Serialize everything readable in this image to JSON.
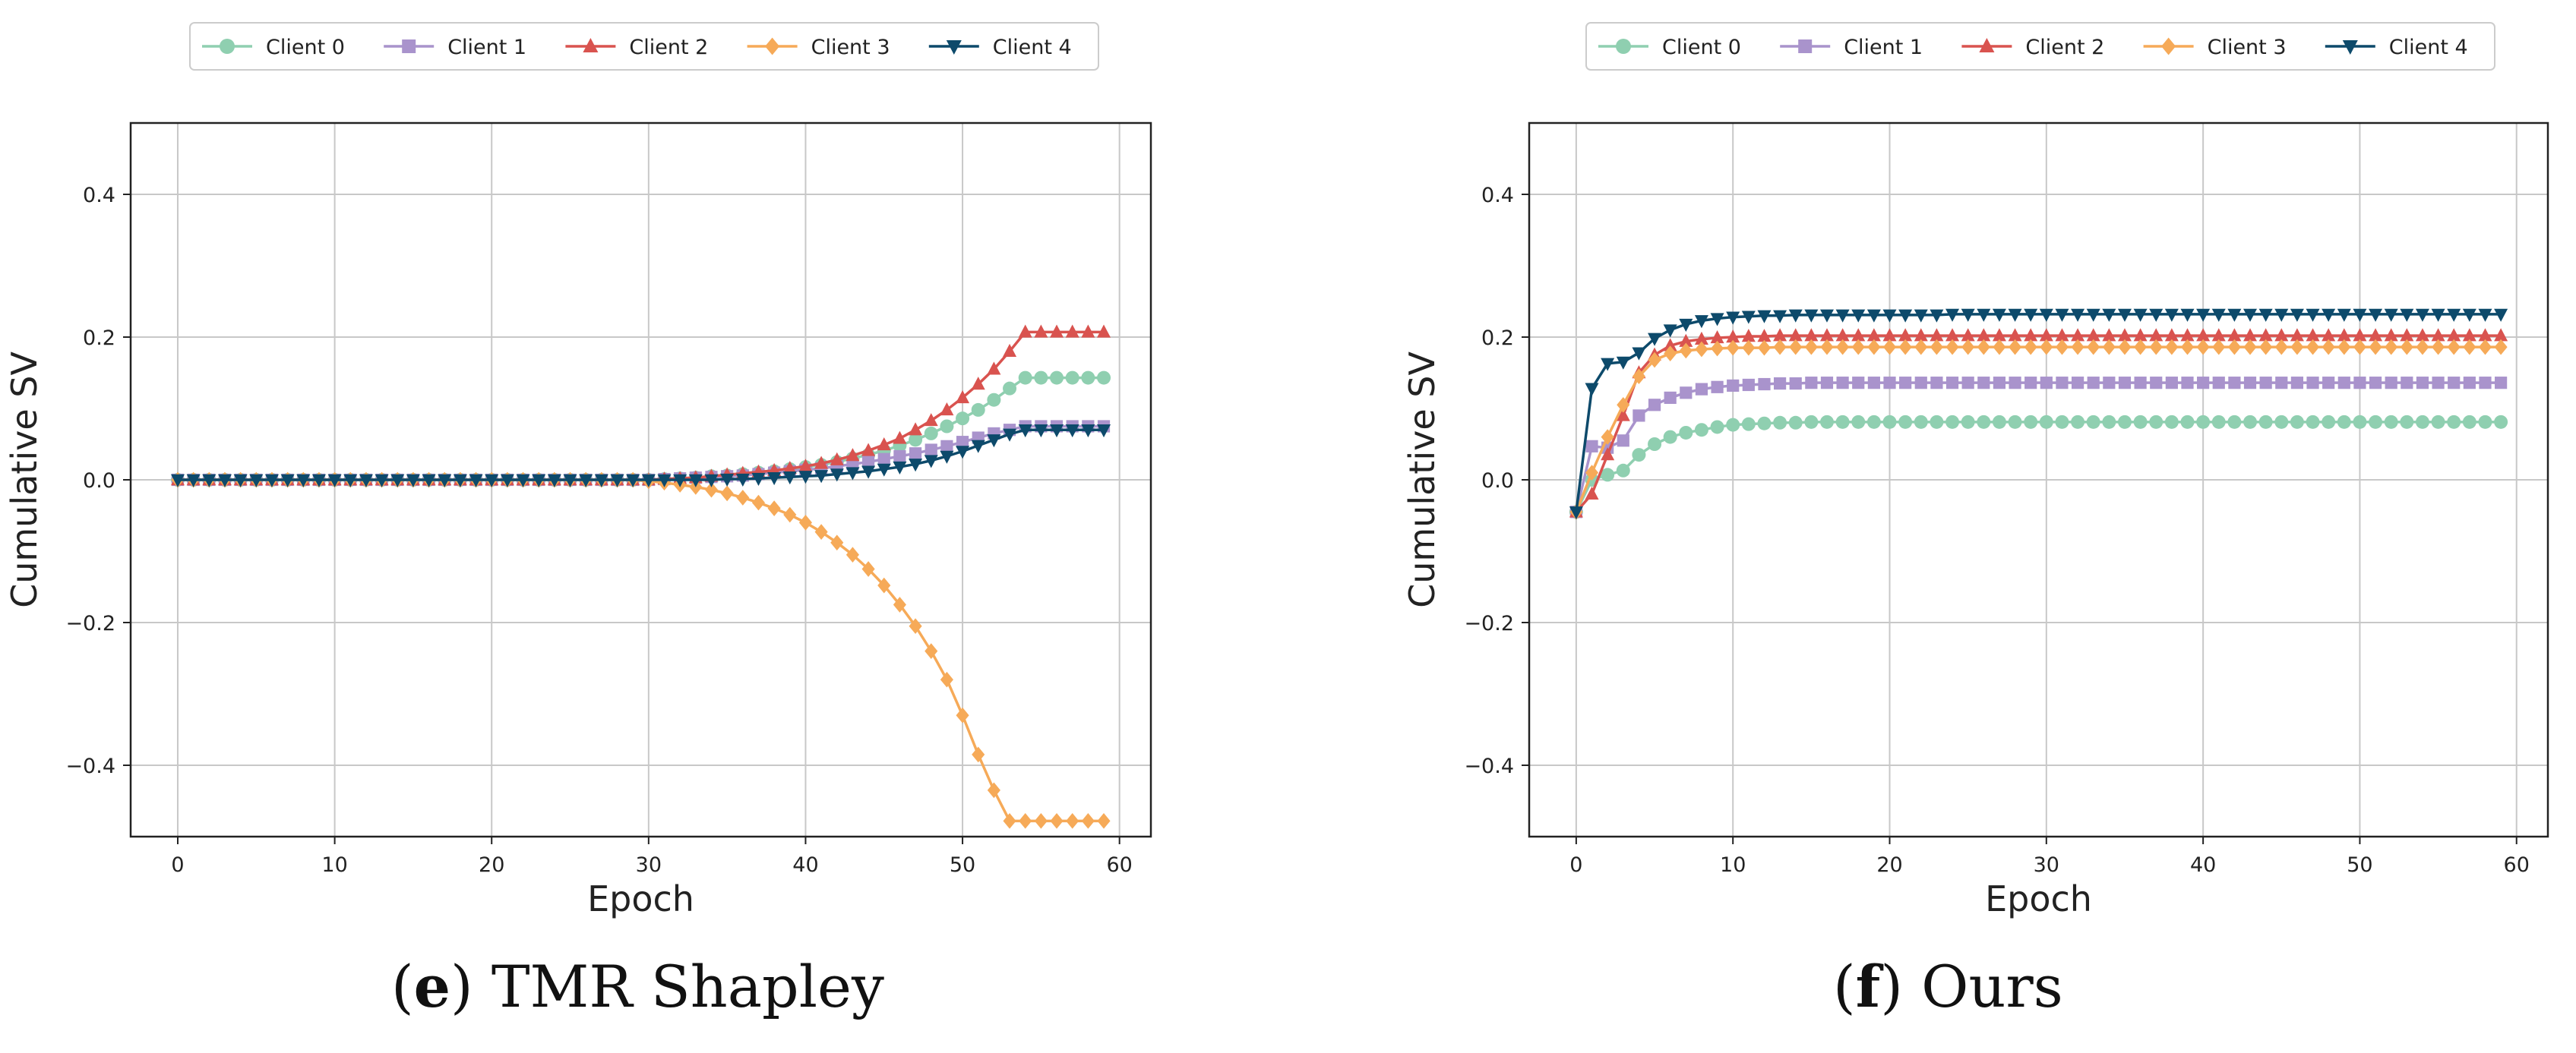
{
  "colors": {
    "client0": "#8fcfb0",
    "client1": "#a993cc",
    "client2": "#d9534f",
    "client3": "#f6aa58",
    "client4": "#0d4a6b",
    "grid": "#c8c8c8",
    "axis": "#222222"
  },
  "chart_data": [
    {
      "type": "line",
      "panel_letter": "e",
      "caption": "TMR Shapley",
      "xlabel": "Epoch",
      "ylabel": "Cumulative SV",
      "xlim": [
        -3,
        62
      ],
      "ylim": [
        -0.5,
        0.5
      ],
      "xticks": [
        0,
        10,
        20,
        30,
        40,
        50,
        60
      ],
      "xtick_labels": [
        "0",
        "10",
        "20",
        "30",
        "40",
        "50",
        "60"
      ],
      "yticks": [
        -0.4,
        -0.2,
        0.0,
        0.2,
        0.4
      ],
      "ytick_labels": [
        "−0.4",
        "−0.2",
        "0.0",
        "0.2",
        "0.4"
      ],
      "grid": true,
      "legend_location": "top-center",
      "x": [
        0,
        1,
        2,
        3,
        4,
        5,
        6,
        7,
        8,
        9,
        10,
        11,
        12,
        13,
        14,
        15,
        16,
        17,
        18,
        19,
        20,
        21,
        22,
        23,
        24,
        25,
        26,
        27,
        28,
        29,
        30,
        31,
        32,
        33,
        34,
        35,
        36,
        37,
        38,
        39,
        40,
        41,
        42,
        43,
        44,
        45,
        46,
        47,
        48,
        49,
        50,
        51,
        52,
        53,
        54,
        55,
        56,
        57,
        58,
        59
      ],
      "series": [
        {
          "name": "Client 0",
          "marker": "circle",
          "values": [
            0,
            0,
            0,
            0,
            0,
            0,
            0,
            0,
            0,
            0,
            0,
            0,
            0,
            0,
            0,
            0,
            0,
            0,
            0,
            0,
            0,
            0,
            0,
            0,
            0,
            0,
            0,
            0,
            0,
            0,
            0,
            0.001,
            0.002,
            0.003,
            0.005,
            0.006,
            0.008,
            0.01,
            0.012,
            0.015,
            0.018,
            0.021,
            0.025,
            0.03,
            0.035,
            0.041,
            0.048,
            0.056,
            0.065,
            0.075,
            0.086,
            0.098,
            0.112,
            0.128,
            0.143,
            0.143,
            0.143,
            0.143,
            0.143,
            0.143
          ]
        },
        {
          "name": "Client 1",
          "marker": "square",
          "values": [
            0,
            0,
            0,
            0,
            0,
            0,
            0,
            0,
            0,
            0,
            0,
            0,
            0,
            0,
            0,
            0,
            0,
            0,
            0,
            0,
            0,
            0,
            0,
            0,
            0,
            0,
            0,
            0,
            0,
            0,
            0,
            0.001,
            0.002,
            0.003,
            0.004,
            0.005,
            0.006,
            0.008,
            0.01,
            0.012,
            0.014,
            0.016,
            0.019,
            0.022,
            0.025,
            0.029,
            0.033,
            0.037,
            0.042,
            0.047,
            0.053,
            0.059,
            0.065,
            0.07,
            0.075,
            0.075,
            0.075,
            0.075,
            0.075,
            0.075
          ]
        },
        {
          "name": "Client 2",
          "marker": "triangle-up",
          "values": [
            0,
            0,
            0,
            0,
            0,
            0,
            0,
            0,
            0,
            0,
            0,
            0,
            0,
            0,
            0,
            0,
            0,
            0,
            0,
            0,
            0,
            0,
            0,
            0,
            0,
            0,
            0,
            0,
            0,
            0,
            0,
            0.001,
            0.002,
            0.003,
            0.005,
            0.007,
            0.009,
            0.011,
            0.013,
            0.016,
            0.019,
            0.023,
            0.028,
            0.034,
            0.041,
            0.049,
            0.058,
            0.07,
            0.083,
            0.098,
            0.115,
            0.134,
            0.155,
            0.18,
            0.207,
            0.207,
            0.207,
            0.207,
            0.207,
            0.207
          ]
        },
        {
          "name": "Client 3",
          "marker": "diamond",
          "values": [
            0,
            0,
            0,
            0,
            0,
            0,
            0,
            0,
            0,
            0,
            0,
            0,
            0,
            0,
            0,
            0,
            0,
            0,
            0,
            0,
            0,
            0,
            0,
            0,
            0,
            0,
            0,
            0,
            0,
            0,
            -0.002,
            -0.004,
            -0.007,
            -0.01,
            -0.014,
            -0.019,
            -0.025,
            -0.032,
            -0.04,
            -0.049,
            -0.06,
            -0.073,
            -0.088,
            -0.105,
            -0.125,
            -0.148,
            -0.175,
            -0.205,
            -0.24,
            -0.28,
            -0.33,
            -0.385,
            -0.435,
            -0.478,
            -0.478,
            -0.478,
            -0.478,
            -0.478,
            -0.478,
            -0.478
          ]
        },
        {
          "name": "Client 4",
          "marker": "triangle-down",
          "values": [
            0,
            0,
            0,
            0,
            0,
            0,
            0,
            0,
            0,
            0,
            0,
            0,
            0,
            0,
            0,
            0,
            0,
            0,
            0,
            0,
            0,
            0,
            0,
            0,
            0,
            0,
            0,
            0,
            0,
            0,
            0,
            0,
            0,
            0,
            0,
            0.001,
            0.001,
            0.002,
            0.003,
            0.004,
            0.005,
            0.006,
            0.008,
            0.01,
            0.012,
            0.015,
            0.018,
            0.022,
            0.027,
            0.033,
            0.04,
            0.048,
            0.056,
            0.064,
            0.07,
            0.07,
            0.07,
            0.07,
            0.07,
            0.07
          ]
        }
      ]
    },
    {
      "type": "line",
      "panel_letter": "f",
      "caption": "Ours",
      "xlabel": "Epoch",
      "ylabel": "Cumulative SV",
      "xlim": [
        -3,
        62
      ],
      "ylim": [
        -0.5,
        0.5
      ],
      "xticks": [
        0,
        10,
        20,
        30,
        40,
        50,
        60
      ],
      "xtick_labels": [
        "0",
        "10",
        "20",
        "30",
        "40",
        "50",
        "60"
      ],
      "yticks": [
        -0.4,
        -0.2,
        0.0,
        0.2,
        0.4
      ],
      "ytick_labels": [
        "−0.4",
        "−0.2",
        "0.0",
        "0.2",
        "0.4"
      ],
      "grid": true,
      "legend_location": "top-center",
      "x": [
        0,
        1,
        2,
        3,
        4,
        5,
        6,
        7,
        8,
        9,
        10,
        11,
        12,
        13,
        14,
        15,
        16,
        17,
        18,
        19,
        20,
        21,
        22,
        23,
        24,
        25,
        26,
        27,
        28,
        29,
        30,
        31,
        32,
        33,
        34,
        35,
        36,
        37,
        38,
        39,
        40,
        41,
        42,
        43,
        44,
        45,
        46,
        47,
        48,
        49,
        50,
        51,
        52,
        53,
        54,
        55,
        56,
        57,
        58,
        59
      ],
      "series": [
        {
          "name": "Client 0",
          "marker": "circle",
          "values": [
            -0.045,
            0.0,
            0.007,
            0.013,
            0.035,
            0.05,
            0.06,
            0.066,
            0.07,
            0.074,
            0.077,
            0.078,
            0.079,
            0.08,
            0.08,
            0.081,
            0.081,
            0.081,
            0.081,
            0.081,
            0.081,
            0.081,
            0.081,
            0.081,
            0.081,
            0.081,
            0.081,
            0.081,
            0.081,
            0.081,
            0.081,
            0.081,
            0.081,
            0.081,
            0.081,
            0.081,
            0.081,
            0.081,
            0.081,
            0.081,
            0.081,
            0.081,
            0.081,
            0.081,
            0.081,
            0.081,
            0.081,
            0.081,
            0.081,
            0.081,
            0.081,
            0.081,
            0.081,
            0.081,
            0.081,
            0.081,
            0.081,
            0.081,
            0.081,
            0.081
          ]
        },
        {
          "name": "Client 1",
          "marker": "square",
          "values": [
            -0.045,
            0.047,
            0.045,
            0.055,
            0.09,
            0.105,
            0.115,
            0.122,
            0.127,
            0.13,
            0.132,
            0.133,
            0.134,
            0.135,
            0.135,
            0.136,
            0.136,
            0.136,
            0.136,
            0.136,
            0.136,
            0.136,
            0.136,
            0.136,
            0.136,
            0.136,
            0.136,
            0.136,
            0.136,
            0.136,
            0.136,
            0.136,
            0.136,
            0.136,
            0.136,
            0.136,
            0.136,
            0.136,
            0.136,
            0.136,
            0.136,
            0.136,
            0.136,
            0.136,
            0.136,
            0.136,
            0.136,
            0.136,
            0.136,
            0.136,
            0.136,
            0.136,
            0.136,
            0.136,
            0.136,
            0.136,
            0.136,
            0.136,
            0.136,
            0.136
          ]
        },
        {
          "name": "Client 2",
          "marker": "triangle-up",
          "values": [
            -0.045,
            -0.02,
            0.035,
            0.09,
            0.15,
            0.175,
            0.188,
            0.194,
            0.197,
            0.199,
            0.2,
            0.201,
            0.201,
            0.202,
            0.202,
            0.202,
            0.202,
            0.202,
            0.202,
            0.202,
            0.202,
            0.202,
            0.202,
            0.202,
            0.202,
            0.202,
            0.202,
            0.202,
            0.202,
            0.202,
            0.202,
            0.202,
            0.202,
            0.202,
            0.202,
            0.202,
            0.202,
            0.202,
            0.202,
            0.202,
            0.202,
            0.202,
            0.202,
            0.202,
            0.202,
            0.202,
            0.202,
            0.202,
            0.202,
            0.202,
            0.202,
            0.202,
            0.202,
            0.202,
            0.202,
            0.202,
            0.202,
            0.202,
            0.202,
            0.202
          ]
        },
        {
          "name": "Client 3",
          "marker": "diamond",
          "values": [
            -0.045,
            0.01,
            0.06,
            0.105,
            0.145,
            0.168,
            0.177,
            0.181,
            0.183,
            0.184,
            0.185,
            0.185,
            0.185,
            0.186,
            0.186,
            0.186,
            0.186,
            0.186,
            0.186,
            0.186,
            0.186,
            0.186,
            0.186,
            0.186,
            0.186,
            0.186,
            0.186,
            0.186,
            0.186,
            0.186,
            0.186,
            0.186,
            0.186,
            0.186,
            0.186,
            0.186,
            0.186,
            0.186,
            0.186,
            0.186,
            0.186,
            0.186,
            0.186,
            0.186,
            0.186,
            0.186,
            0.186,
            0.186,
            0.186,
            0.186,
            0.186,
            0.186,
            0.186,
            0.186,
            0.186,
            0.186,
            0.186,
            0.186,
            0.186,
            0.186
          ]
        },
        {
          "name": "Client 4",
          "marker": "triangle-down",
          "values": [
            -0.045,
            0.128,
            0.163,
            0.165,
            0.178,
            0.198,
            0.21,
            0.218,
            0.223,
            0.226,
            0.228,
            0.229,
            0.23,
            0.23,
            0.231,
            0.231,
            0.231,
            0.231,
            0.231,
            0.231,
            0.231,
            0.231,
            0.231,
            0.231,
            0.232,
            0.232,
            0.232,
            0.232,
            0.232,
            0.232,
            0.232,
            0.232,
            0.232,
            0.232,
            0.232,
            0.232,
            0.232,
            0.232,
            0.232,
            0.232,
            0.232,
            0.232,
            0.232,
            0.232,
            0.232,
            0.232,
            0.232,
            0.232,
            0.232,
            0.232,
            0.232,
            0.232,
            0.232,
            0.232,
            0.232,
            0.232,
            0.232,
            0.232,
            0.232,
            0.232
          ]
        }
      ]
    }
  ]
}
